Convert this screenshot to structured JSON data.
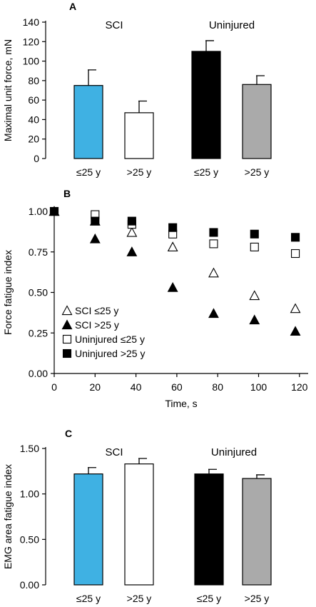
{
  "colors": {
    "sci_young": "#3fb1e3",
    "sci_old": "#ffffff",
    "uninj_young": "#000000",
    "uninj_old": "#aaaaaa"
  },
  "chart_data": [
    {
      "panel": "A",
      "type": "bar",
      "ylabel": "Maximal unit force, mN",
      "ylim": [
        0,
        140
      ],
      "yticks": [
        "0",
        "20",
        "40",
        "60",
        "80",
        "100",
        "120",
        "140"
      ],
      "groups": [
        {
          "label": "SCI",
          "bars": [
            {
              "label": "≤25 y",
              "value": 75,
              "error": 16,
              "color_key": "sci_young"
            },
            {
              "label": ">25 y",
              "value": 47,
              "error": 12,
              "color_key": "sci_old"
            }
          ]
        },
        {
          "label": "Uninjured",
          "bars": [
            {
              "label": "≤25 y",
              "value": 110,
              "error": 11,
              "color_key": "uninj_young"
            },
            {
              "label": ">25 y",
              "value": 76,
              "error": 9,
              "color_key": "uninj_old"
            }
          ]
        }
      ]
    },
    {
      "panel": "B",
      "type": "scatter",
      "xlabel": "Time, s",
      "ylabel": "Force fatigue index",
      "xlim": [
        0,
        125
      ],
      "ylim": [
        0,
        1.0
      ],
      "xticks": [
        "0",
        "20",
        "40",
        "60",
        "80",
        "100",
        "120"
      ],
      "yticks": [
        "0.00",
        "0.25",
        "0.50",
        "0.75",
        "1.00"
      ],
      "legend_position": "bottom-left",
      "series": [
        {
          "name": "SCI ≤25 y",
          "marker": "triangle-open",
          "x": [
            0,
            20,
            38,
            58,
            78,
            98,
            118
          ],
          "y": [
            1.0,
            0.94,
            0.87,
            0.78,
            0.62,
            0.48,
            0.4
          ]
        },
        {
          "name": "SCI >25 y",
          "marker": "triangle-filled",
          "x": [
            0,
            20,
            38,
            58,
            78,
            98,
            118
          ],
          "y": [
            1.0,
            0.83,
            0.75,
            0.53,
            0.37,
            0.33,
            0.26
          ]
        },
        {
          "name": "Uninjured ≤25 y",
          "marker": "square-open",
          "x": [
            0,
            20,
            38,
            58,
            78,
            98,
            118
          ],
          "y": [
            1.0,
            0.98,
            0.92,
            0.86,
            0.8,
            0.78,
            0.74
          ]
        },
        {
          "name": "Uninjured >25 y",
          "marker": "square-filled",
          "x": [
            0,
            20,
            38,
            58,
            78,
            98,
            118
          ],
          "y": [
            1.0,
            0.94,
            0.94,
            0.9,
            0.87,
            0.86,
            0.84
          ]
        }
      ]
    },
    {
      "panel": "C",
      "type": "bar",
      "ylabel": "EMG area fatigue index",
      "ylim": [
        0,
        1.5
      ],
      "yticks": [
        "0.00",
        "0.50",
        "1.00",
        "1.50"
      ],
      "groups": [
        {
          "label": "SCI",
          "bars": [
            {
              "label": "≤25 y",
              "value": 1.22,
              "error": 0.07,
              "color_key": "sci_young"
            },
            {
              "label": ">25 y",
              "value": 1.33,
              "error": 0.06,
              "color_key": "sci_old"
            }
          ]
        },
        {
          "label": "Uninjured",
          "bars": [
            {
              "label": "≤25 y",
              "value": 1.22,
              "error": 0.05,
              "color_key": "uninj_young"
            },
            {
              "label": ">25 y",
              "value": 1.17,
              "error": 0.04,
              "color_key": "uninj_old"
            }
          ]
        }
      ]
    }
  ]
}
